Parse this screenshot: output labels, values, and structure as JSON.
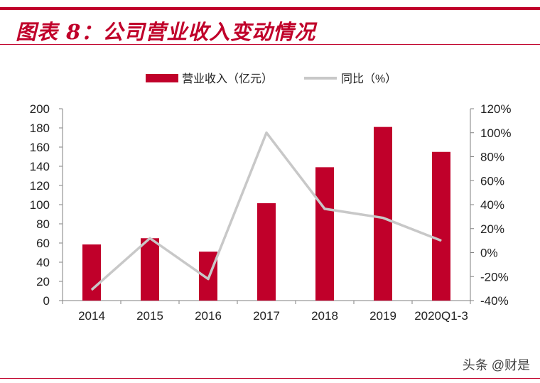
{
  "title": "图表 8：公司营业收入变动情况",
  "watermark": "头条 @财是",
  "chart_data": {
    "type": "bar",
    "categories": [
      "2014",
      "2015",
      "2016",
      "2017",
      "2018",
      "2019",
      "2020Q1-3"
    ],
    "series": [
      {
        "name": "营业收入（亿元）",
        "type": "bar",
        "axis": "left",
        "color": "#c0002a",
        "values": [
          58.5,
          65,
          51,
          101.5,
          139,
          181,
          155
        ]
      },
      {
        "name": "同比（%）",
        "type": "line",
        "axis": "right",
        "color": "#c8c8c8",
        "values": [
          -31,
          12,
          -22,
          100,
          36.5,
          29,
          10
        ]
      }
    ],
    "y_left": {
      "range": [
        0,
        200
      ],
      "ticks": [
        "0",
        "20",
        "40",
        "60",
        "80",
        "100",
        "120",
        "140",
        "160",
        "180",
        "200"
      ]
    },
    "y_right": {
      "range": [
        -40,
        120
      ],
      "ticks": [
        "-40%",
        "-20%",
        "0%",
        "20%",
        "40%",
        "60%",
        "80%",
        "100%",
        "120%"
      ]
    },
    "grid": false,
    "legend_position": "top"
  }
}
